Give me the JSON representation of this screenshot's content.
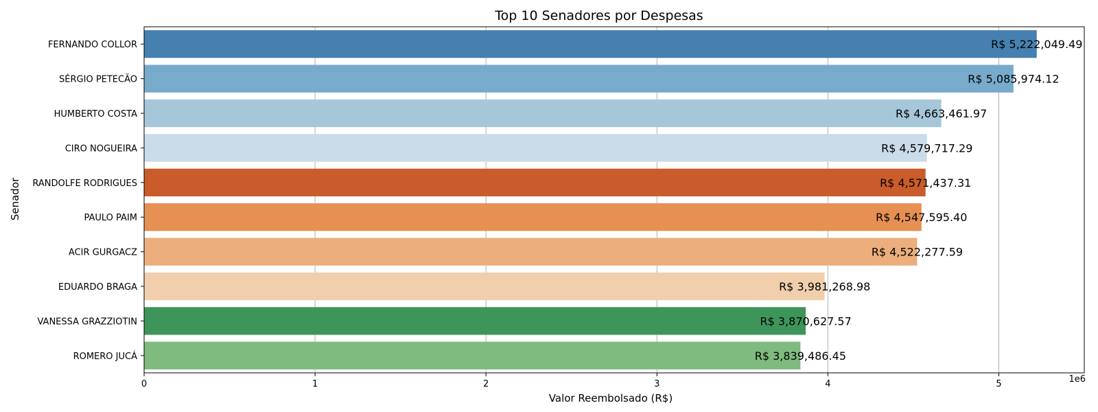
{
  "chart_data": {
    "type": "bar",
    "orientation": "horizontal",
    "title": "Top 10 Senadores por Despesas",
    "xlabel": "Valor Reembolsado (R$)",
    "ylabel": "Senador",
    "x_scale_label": "1e6",
    "x_scale": 1000000,
    "xlim": [
      0,
      5.5
    ],
    "xticks": [
      0,
      1,
      2,
      3,
      4,
      5
    ],
    "grid": "x",
    "categories": [
      "FERNANDO COLLOR",
      "SÉRGIO PETECÃO",
      "HUMBERTO COSTA",
      "CIRO NOGUEIRA",
      "RANDOLFE RODRIGUES",
      "PAULO PAIM",
      "ACIR GURGACZ",
      "EDUARDO BRAGA",
      "VANESSA GRAZZIOTIN",
      "ROMERO JUCÁ"
    ],
    "values": [
      5222049.49,
      5085974.12,
      4663461.97,
      4579717.29,
      4571437.31,
      4547595.4,
      4522277.59,
      3981268.98,
      3870627.57,
      3839486.45
    ],
    "value_labels": [
      "R$ 5,222,049.49",
      "R$ 5,085,974.12",
      "R$ 4,663,461.97",
      "R$ 4,579,717.29",
      "R$ 4,571,437.31",
      "R$ 4,547,595.40",
      "R$ 4,522,277.59",
      "R$ 3,981,268.98",
      "R$ 3,870,627.57",
      "R$ 3,839,486.45"
    ],
    "colors": [
      "#4580b0",
      "#78abcb",
      "#a6c6d9",
      "#cadbe9",
      "#c95c2a",
      "#e69053",
      "#ebae7c",
      "#f1cfad",
      "#3e955a",
      "#7fba7e"
    ]
  }
}
